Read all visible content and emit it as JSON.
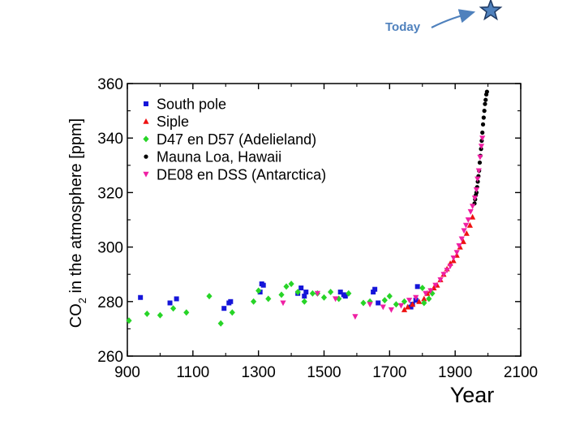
{
  "annotation": {
    "label": "Today",
    "color": "#4f81bd",
    "star_fill": "#4f81bd",
    "star_stroke": "#1f3a63"
  },
  "chart_data": {
    "type": "scatter",
    "title": "",
    "xlabel": "Year",
    "ylabel": "CO2 in the atmosphere [ppm]",
    "ylabel_parts": {
      "prefix": "CO",
      "subscript": "2",
      "rest": " in the atmosphere [ppm]"
    },
    "xlim": [
      900,
      2100
    ],
    "ylim": [
      260,
      360
    ],
    "xticks": [
      900,
      1100,
      1300,
      1500,
      1700,
      1900,
      2100
    ],
    "yticks": [
      260,
      280,
      300,
      320,
      340,
      360
    ],
    "legend_position": "top-left",
    "series": [
      {
        "name": "South pole",
        "marker": "square",
        "color": "#1515d9",
        "points": [
          [
            940,
            281.5
          ],
          [
            1030,
            279.5
          ],
          [
            1050,
            281
          ],
          [
            1195,
            277.5
          ],
          [
            1210,
            279.5
          ],
          [
            1215,
            280
          ],
          [
            1305,
            283.5
          ],
          [
            1310,
            286.5
          ],
          [
            1315,
            286
          ],
          [
            1420,
            283
          ],
          [
            1430,
            285
          ],
          [
            1440,
            282
          ],
          [
            1445,
            283.5
          ],
          [
            1550,
            283.5
          ],
          [
            1560,
            282.5
          ],
          [
            1565,
            282
          ],
          [
            1650,
            283.5
          ],
          [
            1655,
            284.5
          ],
          [
            1665,
            279.5
          ],
          [
            1765,
            278
          ],
          [
            1770,
            279
          ],
          [
            1780,
            280.5
          ],
          [
            1785,
            285.5
          ]
        ]
      },
      {
        "name": "Siple",
        "marker": "triangle-up",
        "color": "#ee1111",
        "points": [
          [
            1745,
            277
          ],
          [
            1755,
            278
          ],
          [
            1770,
            279
          ],
          [
            1790,
            280
          ],
          [
            1805,
            281
          ],
          [
            1815,
            283
          ],
          [
            1825,
            284
          ],
          [
            1835,
            285
          ],
          [
            1845,
            286
          ],
          [
            1855,
            288
          ],
          [
            1865,
            290
          ],
          [
            1875,
            292
          ],
          [
            1885,
            294
          ],
          [
            1895,
            295
          ],
          [
            1905,
            297
          ],
          [
            1915,
            300
          ],
          [
            1925,
            302
          ],
          [
            1935,
            305
          ],
          [
            1945,
            308
          ],
          [
            1953,
            311
          ]
        ]
      },
      {
        "name": "D47 en D57 (Adelieland)",
        "marker": "diamond",
        "color": "#27d427",
        "points": [
          [
            905,
            273
          ],
          [
            960,
            275.5
          ],
          [
            1000,
            275
          ],
          [
            1040,
            277.5
          ],
          [
            1080,
            276
          ],
          [
            1150,
            282
          ],
          [
            1185,
            272
          ],
          [
            1220,
            276
          ],
          [
            1285,
            280
          ],
          [
            1300,
            284
          ],
          [
            1330,
            281
          ],
          [
            1370,
            282.5
          ],
          [
            1385,
            285.5
          ],
          [
            1400,
            286.5
          ],
          [
            1420,
            283.5
          ],
          [
            1440,
            280
          ],
          [
            1465,
            283
          ],
          [
            1480,
            283
          ],
          [
            1500,
            281.5
          ],
          [
            1520,
            283.5
          ],
          [
            1545,
            281
          ],
          [
            1575,
            283
          ],
          [
            1620,
            279.5
          ],
          [
            1640,
            280
          ],
          [
            1685,
            280.5
          ],
          [
            1700,
            282
          ],
          [
            1720,
            279
          ],
          [
            1745,
            280
          ],
          [
            1800,
            285
          ],
          [
            1805,
            279.5
          ],
          [
            1820,
            281
          ],
          [
            1830,
            283
          ]
        ]
      },
      {
        "name": "Mauna Loa, Hawaii",
        "marker": "circle",
        "color": "#000000",
        "points": [
          [
            1959,
            316
          ],
          [
            1961,
            317.5
          ],
          [
            1963,
            319
          ],
          [
            1965,
            320
          ],
          [
            1967,
            322
          ],
          [
            1969,
            324
          ],
          [
            1971,
            326
          ],
          [
            1973,
            328
          ],
          [
            1975,
            331
          ],
          [
            1977,
            333.5
          ],
          [
            1979,
            336
          ],
          [
            1981,
            339
          ],
          [
            1983,
            342
          ],
          [
            1985,
            345
          ],
          [
            1987,
            347.5
          ],
          [
            1989,
            350
          ],
          [
            1991,
            352.5
          ],
          [
            1993,
            354
          ],
          [
            1995,
            356
          ],
          [
            1997,
            357
          ]
        ]
      },
      {
        "name": "DE08 en DSS (Antarctica)",
        "marker": "triangle-down",
        "color": "#ef1fa3",
        "points": [
          [
            1375,
            279.5
          ],
          [
            1480,
            283
          ],
          [
            1535,
            281
          ],
          [
            1595,
            274.5
          ],
          [
            1640,
            279
          ],
          [
            1680,
            278
          ],
          [
            1705,
            277
          ],
          [
            1735,
            278.5
          ],
          [
            1760,
            280.5
          ],
          [
            1780,
            281.5
          ],
          [
            1810,
            283
          ],
          [
            1825,
            284
          ],
          [
            1840,
            286
          ],
          [
            1855,
            288
          ],
          [
            1865,
            290
          ],
          [
            1875,
            291.5
          ],
          [
            1885,
            293
          ],
          [
            1895,
            296
          ],
          [
            1905,
            298
          ],
          [
            1912,
            300.5
          ],
          [
            1920,
            303
          ],
          [
            1927,
            306
          ],
          [
            1933,
            308
          ],
          [
            1940,
            310
          ],
          [
            1947,
            313
          ],
          [
            1953,
            315
          ],
          [
            1960,
            318
          ],
          [
            1965,
            321
          ],
          [
            1968,
            325
          ],
          [
            1972,
            328
          ],
          [
            1976,
            333
          ],
          [
            1980,
            337
          ],
          [
            1983,
            340
          ]
        ]
      }
    ]
  }
}
